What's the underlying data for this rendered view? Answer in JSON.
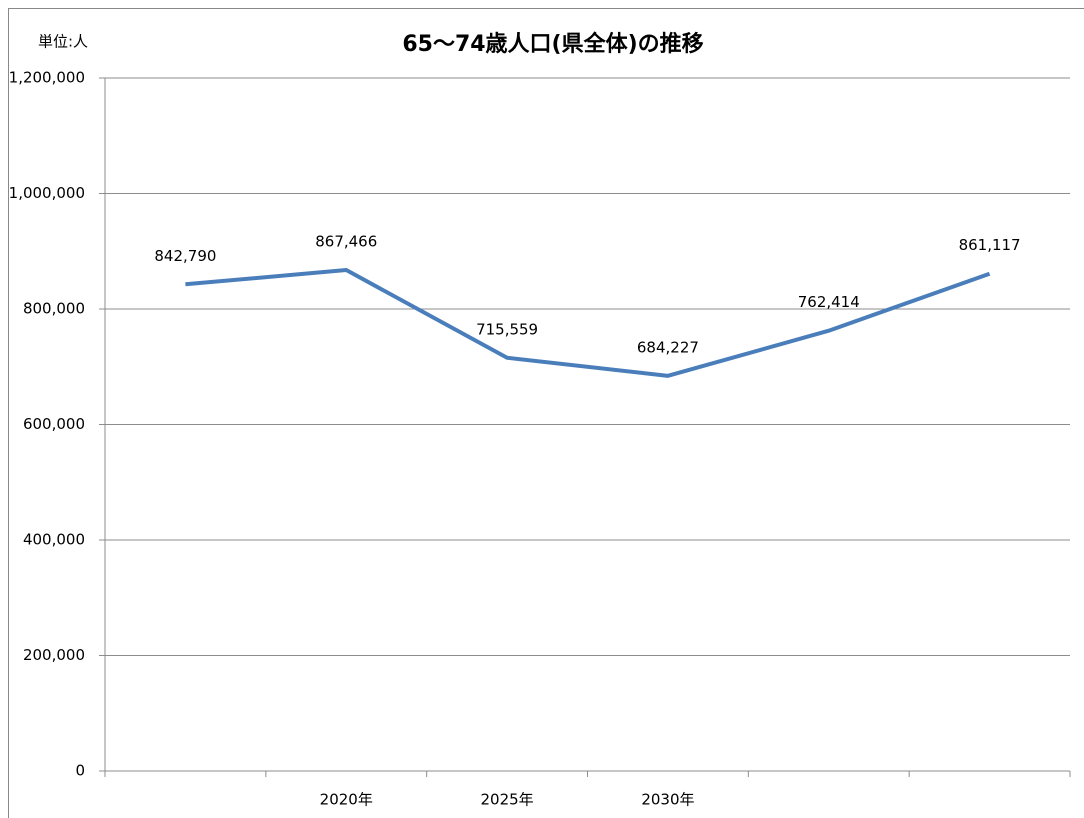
{
  "chart_data": {
    "type": "line",
    "title": "65〜74歳人口(県全体)の推移",
    "y_label": "単位:人",
    "categories": [
      null,
      "2020年",
      "2025年",
      "2030年",
      null,
      null
    ],
    "values": [
      842790,
      867466,
      715559,
      684227,
      762414,
      861117
    ],
    "value_labels": [
      "842,790",
      "867,466",
      "715,559",
      "684,227",
      "762,414",
      "861,117"
    ],
    "color": "#4a7ebb",
    "ylim": [
      0,
      1200000
    ],
    "yticks": [
      0,
      {
        "value": 200000,
        "label": "200,000"
      },
      {
        "value": 400000,
        "label": "400,000"
      },
      {
        "value": 600000,
        "label": "600,000"
      },
      {
        "value": 800000,
        "label": "800,000"
      },
      {
        "value": 1000000,
        "label": "1,000,000"
      },
      {
        "value": 1200000,
        "label": "1,200,000"
      }
    ],
    "grid": true
  }
}
